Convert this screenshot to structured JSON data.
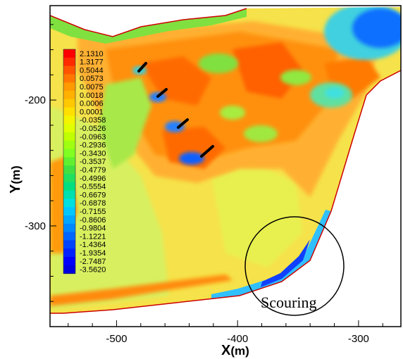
{
  "chart_data": {
    "type": "heatmap",
    "title": "",
    "xlabel": "X",
    "xlabel_unit": "(m)",
    "ylabel": "Y",
    "ylabel_unit": "(m)",
    "xlim": [
      -555,
      -265
    ],
    "ylim": [
      -380,
      -125
    ],
    "x_ticks": [
      {
        "value": -500,
        "label": "-500"
      },
      {
        "value": -400,
        "label": "-400"
      },
      {
        "value": -300,
        "label": "-300"
      }
    ],
    "y_ticks": [
      {
        "value": -200,
        "label": "-200"
      },
      {
        "value": -300,
        "label": "-300"
      }
    ],
    "legend": {
      "placement": "top-left",
      "levels": [
        "2.1310",
        "1.3177",
        "0.5044",
        "0.0573",
        "0.0075",
        "0.0018",
        "0.0006",
        "0.0001",
        "-0.0358",
        "-0.0526",
        "-0.0963",
        "-0.2936",
        "-0.3430",
        "-0.3537",
        "-0.4779",
        "-0.4996",
        "-0.5554",
        "-0.6679",
        "-0.6878",
        "-0.7155",
        "-0.8606",
        "-0.9804",
        "-1.1221",
        "-1.4364",
        "-1.9354",
        "-2.7487",
        "-3.5620"
      ],
      "colors": [
        "#ff0000",
        "#ff2a00",
        "#ff5500",
        "#ff7700",
        "#ff9a00",
        "#ffb000",
        "#ffc800",
        "#ffe000",
        "#f5f500",
        "#e0ff00",
        "#c0ff00",
        "#a0ff10",
        "#80ff20",
        "#60f030",
        "#40e040",
        "#20e060",
        "#00e080",
        "#00e0b0",
        "#00e0e0",
        "#00c8ff",
        "#00a8ff",
        "#0088ff",
        "#0066ff",
        "#0044ff",
        "#0022ff",
        "#0000ff",
        "#0000e0"
      ]
    },
    "annotations": [
      {
        "text": "Scouring",
        "x": -355,
        "y": -355
      }
    ]
  },
  "colors": {
    "field_base": "#f8e040",
    "warm": "#ff9a00",
    "hot": "#ff5a00",
    "green": "#90e040",
    "cyan": "#30e0d0",
    "blue": "#1060ff",
    "boundary": "#cc0000"
  }
}
